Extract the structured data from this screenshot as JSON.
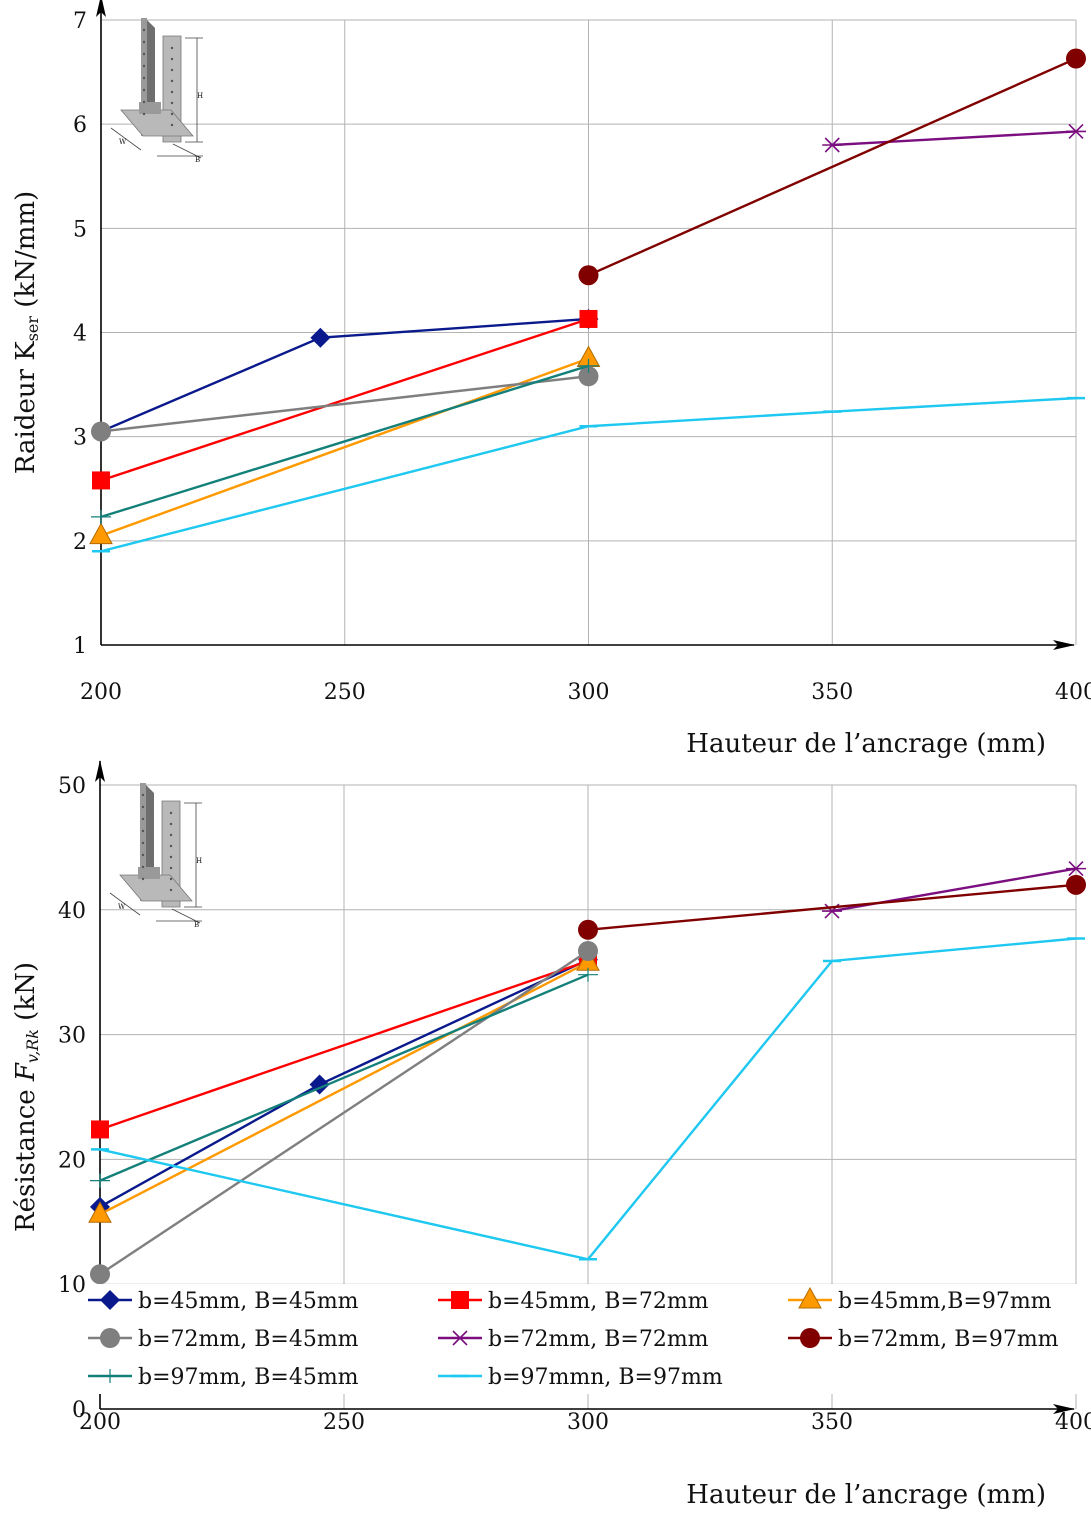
{
  "chart_data": [
    {
      "type": "line",
      "xlabel": "Hauteur de l’ancrage (mm)",
      "ylabel": {
        "main": "Raideur K",
        "sub": "ser",
        "unit": " (kN/mm)"
      },
      "xlim": [
        200,
        400
      ],
      "ylim": [
        1,
        7
      ],
      "xticks": [
        "200",
        "250",
        "300",
        "350",
        "400"
      ],
      "yticks": [
        "1",
        "2",
        "3",
        "4",
        "5",
        "6",
        "7"
      ],
      "grid": true,
      "series": [
        {
          "name": "b=45mm, B=45mm",
          "color": "#0a1a8c",
          "marker": "diamond",
          "x": [
            200,
            245,
            300
          ],
          "y": [
            3.05,
            3.95,
            4.13
          ]
        },
        {
          "name": "b=45mm, B=72mm",
          "color": "#ff0000",
          "marker": "square",
          "x": [
            200,
            300
          ],
          "y": [
            2.58,
            4.13
          ]
        },
        {
          "name": "b=45mm,B=97mm",
          "color": "#ff9900",
          "marker": "triangle",
          "x": [
            200,
            300
          ],
          "y": [
            2.05,
            3.75
          ]
        },
        {
          "name": "b=72mm, B=45mm",
          "color": "#7f7f7f",
          "marker": "circle",
          "x": [
            200,
            300
          ],
          "y": [
            3.05,
            3.58
          ]
        },
        {
          "name": "b=72mm, B=72mm",
          "color": "#7b0f80",
          "marker": "star",
          "x": [
            350,
            400
          ],
          "y": [
            5.8,
            5.93
          ]
        },
        {
          "name": "b=72mm, B=97mm",
          "color": "#800000",
          "marker": "circle",
          "x": [
            300,
            400
          ],
          "y": [
            4.55,
            6.63
          ]
        },
        {
          "name": "b=97mm, B=45mm",
          "color": "#138079",
          "marker": "plus",
          "x": [
            200,
            300
          ],
          "y": [
            2.23,
            3.68
          ]
        },
        {
          "name": "b=97mmn, B=97mm",
          "color": "#1ec8f0",
          "marker": "dash",
          "x": [
            200,
            300,
            350,
            400
          ],
          "y": [
            1.9,
            3.1,
            3.24,
            3.37
          ]
        }
      ]
    },
    {
      "type": "line",
      "xlabel": "Hauteur de l’ancrage (mm)",
      "ylabel": {
        "main": "Résistance ",
        "italic": "F",
        "sub": "v,Rk",
        "unit": " (kN)"
      },
      "xlim": [
        200,
        400
      ],
      "ylim": [
        0,
        50
      ],
      "xticks": [
        "200",
        "250",
        "300",
        "350",
        "400"
      ],
      "yticks": [
        "0",
        "10",
        "20",
        "30",
        "40",
        "50"
      ],
      "grid": true,
      "legend": "lower-left, inside plot, 3 columns",
      "series": [
        {
          "name": "b=45mm, B=45mm",
          "color": "#0a1a8c",
          "marker": "diamond",
          "x": [
            200,
            245,
            300
          ],
          "y": [
            16.2,
            26.0,
            36.0
          ]
        },
        {
          "name": "b=45mm, B=72mm",
          "color": "#ff0000",
          "marker": "square",
          "x": [
            200,
            300
          ],
          "y": [
            22.4,
            35.9
          ]
        },
        {
          "name": "b=45mm,B=97mm",
          "color": "#ff9900",
          "marker": "triangle",
          "x": [
            200,
            300
          ],
          "y": [
            15.6,
            35.8
          ]
        },
        {
          "name": "b=72mm, B=45mm",
          "color": "#7f7f7f",
          "marker": "circle",
          "x": [
            200,
            300
          ],
          "y": [
            10.8,
            36.7
          ]
        },
        {
          "name": "b=72mm, B=72mm",
          "color": "#7b0f80",
          "marker": "star",
          "x": [
            350,
            400
          ],
          "y": [
            39.9,
            43.3
          ]
        },
        {
          "name": "b=72mm, B=97mm",
          "color": "#800000",
          "marker": "circle",
          "x": [
            300,
            400
          ],
          "y": [
            38.4,
            42.0
          ]
        },
        {
          "name": "b=97mm, B=45mm",
          "color": "#138079",
          "marker": "plus",
          "x": [
            200,
            300
          ],
          "y": [
            18.3,
            34.8
          ]
        },
        {
          "name": "b=97mmn, B=97mm",
          "color": "#1ec8f0",
          "marker": "dash",
          "x": [
            200,
            300,
            350,
            400
          ],
          "y": [
            20.8,
            12.0,
            35.9,
            37.7
          ]
        }
      ]
    }
  ],
  "colors": {
    "axis": "#000000",
    "grid": "#b3b3b3"
  },
  "icons": [
    "anchor-bracket-icon"
  ]
}
